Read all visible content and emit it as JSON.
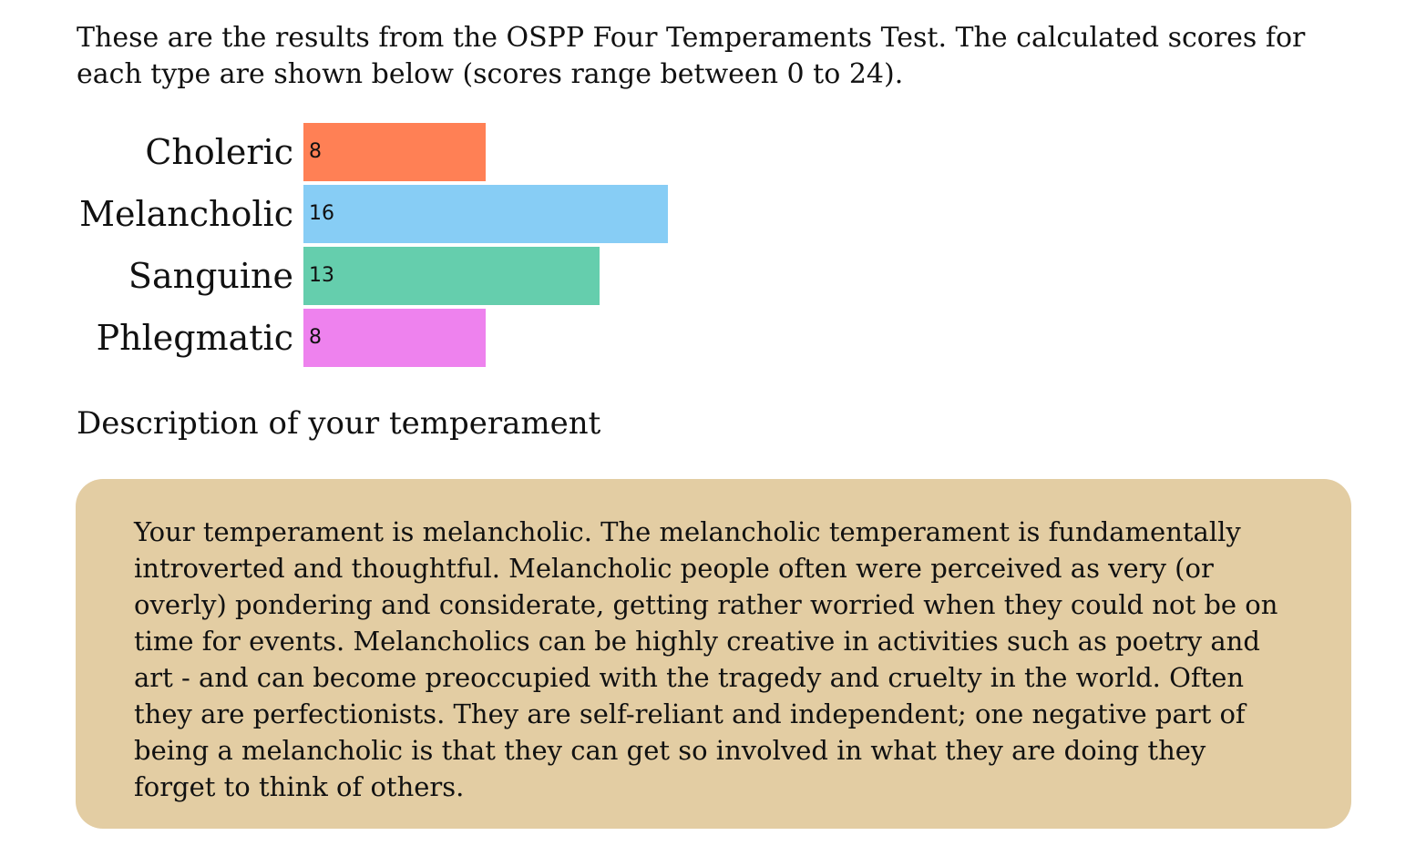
{
  "intro": {
    "text": "These are the results from the OSPP Four Temperaments Test. The calculated scores for each type are shown below (scores range between 0 to 24)."
  },
  "chart_data": {
    "type": "bar",
    "orientation": "horizontal",
    "categories": [
      "Choleric",
      "Melancholic",
      "Sanguine",
      "Phlegmatic"
    ],
    "values": [
      8,
      16,
      13,
      8
    ],
    "colors": [
      "#ff8055",
      "#87cdf5",
      "#65cead",
      "#ee82ee"
    ],
    "xlim": [
      0,
      24
    ],
    "grid": false
  },
  "description": {
    "title": "Description of your temperament",
    "text": "Your temperament is melancholic. The melancholic temperament is fundamentally introverted and thoughtful. Melancholic people often were perceived as very (or overly) pondering and considerate, getting rather worried when they could not be on time for events. Melancholics can be highly creative in activities such as poetry and art - and can become preoccupied with the tragedy and cruelty in the world. Often they are perfectionists. They are self-reliant and independent; one negative part of being a melancholic is that they can get so involved in what they are doing they forget to think of others.",
    "box_color": "#e3cda3"
  }
}
